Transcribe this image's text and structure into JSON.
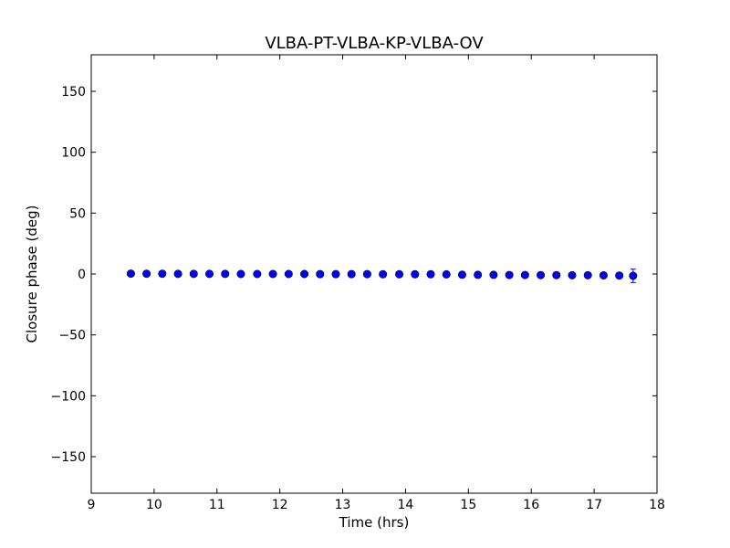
{
  "chart_data": {
    "type": "scatter",
    "title": "VLBA-PT-VLBA-KP-VLBA-OV",
    "xlabel": "Time (hrs)",
    "ylabel": "Closure phase (deg)",
    "xlim": [
      9,
      18
    ],
    "ylim": [
      -180,
      180
    ],
    "xticks": [
      9,
      10,
      11,
      12,
      13,
      14,
      15,
      16,
      17,
      18
    ],
    "xtick_labels": [
      "9",
      "10",
      "11",
      "12",
      "13",
      "14",
      "15",
      "16",
      "17",
      "18"
    ],
    "yticks": [
      -150,
      -100,
      -50,
      0,
      50,
      100,
      150
    ],
    "ytick_labels": [
      "−150",
      "−100",
      "−50",
      "0",
      "50",
      "100",
      "150"
    ],
    "grid": false,
    "marker_color": "#0000ff",
    "series": [
      {
        "x": [
          9.63,
          9.88,
          10.13,
          10.38,
          10.63,
          10.88,
          11.13,
          11.38,
          11.64,
          11.89,
          12.14,
          12.39,
          12.64,
          12.89,
          13.14,
          13.39,
          13.64,
          13.9,
          14.15,
          14.4,
          14.65,
          14.9,
          15.15,
          15.4,
          15.65,
          15.9,
          16.15,
          16.4,
          16.65,
          16.9,
          17.15,
          17.4,
          17.62
        ],
        "y": [
          0.3,
          0.2,
          0.2,
          0.1,
          0.1,
          0.1,
          0.1,
          0.0,
          0.0,
          0.0,
          0.0,
          0.0,
          -0.1,
          -0.1,
          -0.1,
          -0.1,
          -0.2,
          -0.2,
          -0.2,
          -0.2,
          -0.3,
          -0.6,
          -0.7,
          -0.7,
          -0.8,
          -0.8,
          -0.9,
          -0.9,
          -1.0,
          -1.0,
          -1.1,
          -1.3,
          -1.5
        ],
        "yerr": [
          0.5,
          0.5,
          0.5,
          0.5,
          0.5,
          0.5,
          0.5,
          0.5,
          0.5,
          0.5,
          0.5,
          0.5,
          0.5,
          0.5,
          0.5,
          0.5,
          0.5,
          0.5,
          0.5,
          0.5,
          0.5,
          0.6,
          0.6,
          0.6,
          0.6,
          0.6,
          0.6,
          0.7,
          0.7,
          0.8,
          0.9,
          1.5,
          5.5
        ]
      }
    ]
  }
}
